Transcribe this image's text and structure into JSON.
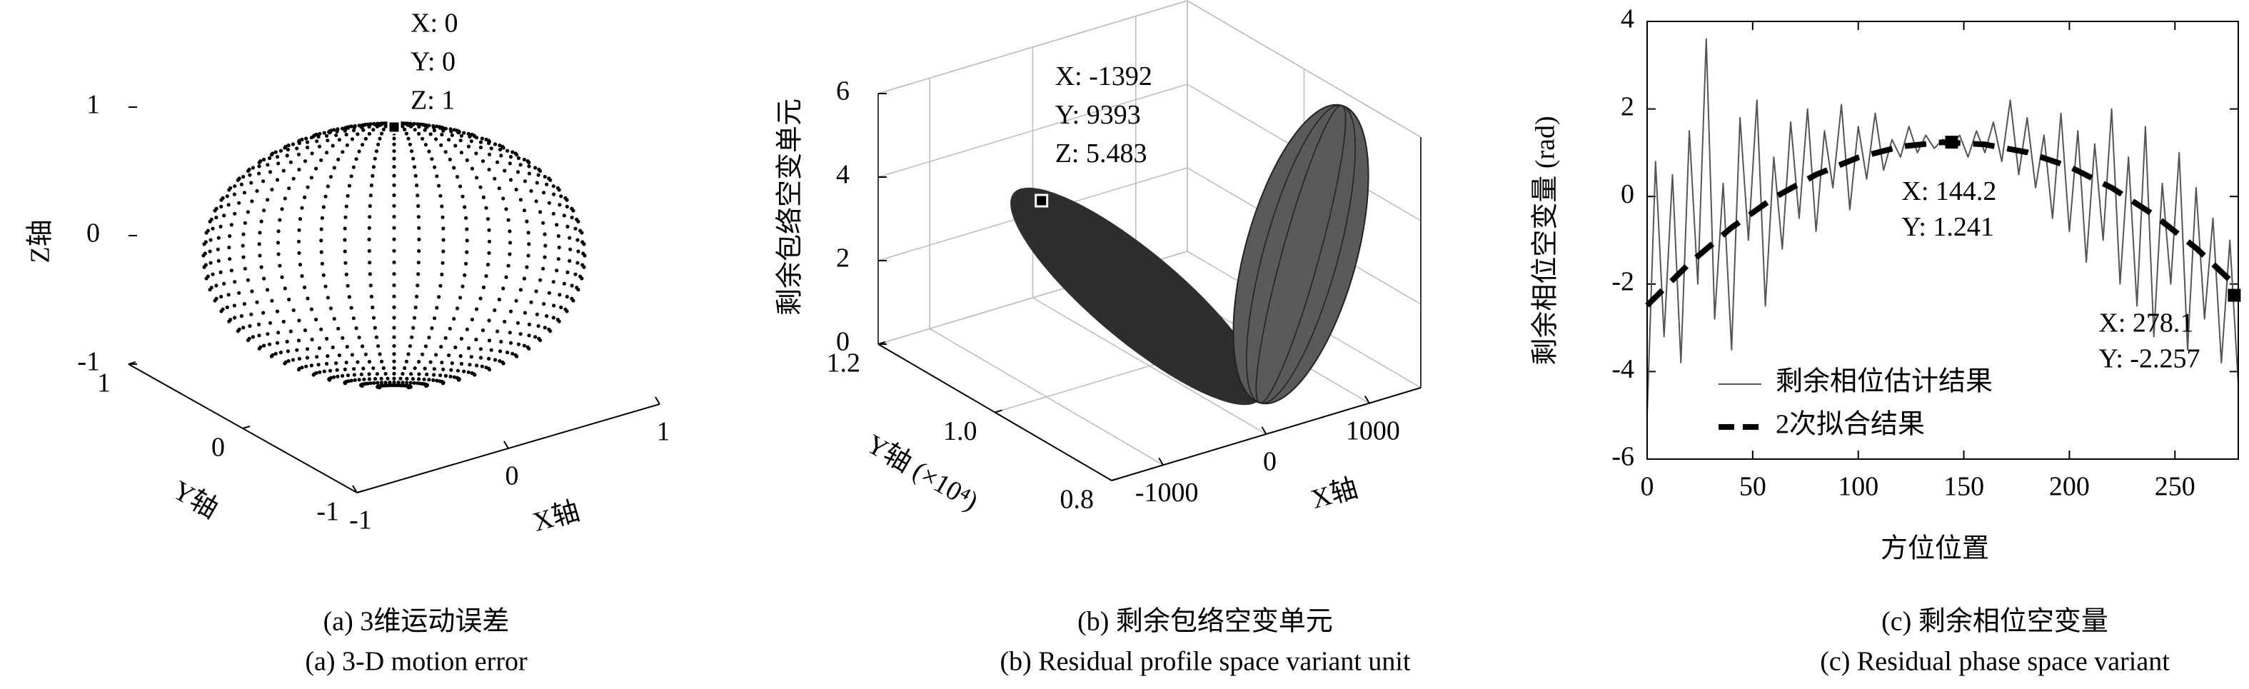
{
  "chart_data": [
    {
      "type": "scatter3d",
      "caption": "(a) 3维运动误差",
      "caption_en": "(a) 3-D motion error",
      "xlabel": "X轴",
      "ylabel": "Y轴",
      "zlabel": "Z轴",
      "xlim": [
        -1,
        1
      ],
      "ylim": [
        -1,
        1
      ],
      "zlim": [
        -1,
        1
      ],
      "xticks": [
        -1,
        0,
        1
      ],
      "yticks": [
        -1,
        0,
        1
      ],
      "zticks": [
        -1,
        0,
        1
      ],
      "grid": false,
      "color": "#000000",
      "datatips": [
        {
          "x": 0,
          "y": 0,
          "z": 1,
          "labels": [
            "X: 0",
            "Y: 0",
            "Z: 1"
          ]
        }
      ]
    },
    {
      "type": "surface3d",
      "caption": "(b) 剩余包络空变单元",
      "caption_en": "(b) Residual profile space variant unit",
      "xlabel": "X轴",
      "ylabel": "Y轴 (×10⁴)",
      "zlabel": "剩余包络空变单元",
      "xlim": [
        -1500,
        1500
      ],
      "ylim": [
        8000,
        12000
      ],
      "zlim": [
        0,
        6
      ],
      "xticks": [
        -1000,
        0,
        1000
      ],
      "yticks": [
        {
          "value": 8000,
          "label": "0.8"
        },
        {
          "value": 10000,
          "label": "1.0"
        },
        {
          "value": 12000,
          "label": "1.2"
        }
      ],
      "zticks": [
        0,
        2,
        4,
        6
      ],
      "grid": true,
      "color": "#333333",
      "datatips": [
        {
          "x": -1392,
          "y": 9393,
          "z": 5.483,
          "labels": [
            "X: -1392",
            "Y: 9393",
            "Z: 5.483"
          ]
        }
      ]
    },
    {
      "type": "line",
      "caption": "(c) 剩余相位空变量",
      "caption_en": "(c) Residual phase space variant",
      "xlabel": "方位位置",
      "ylabel": "剩余相位空变量 (rad)",
      "xlim": [
        0,
        280
      ],
      "ylim": [
        -6,
        4
      ],
      "xticks": [
        0,
        50,
        100,
        150,
        200,
        250
      ],
      "yticks": [
        -6,
        -4,
        -2,
        0,
        2,
        4
      ],
      "legend": "lower left",
      "series": [
        {
          "name": "剩余相位估计结果",
          "color": "#555555",
          "x": [
            0,
            4,
            8,
            12,
            16,
            20,
            24,
            28,
            32,
            36,
            40,
            44,
            48,
            52,
            56,
            60,
            64,
            68,
            72,
            76,
            80,
            84,
            88,
            92,
            96,
            100,
            104,
            108,
            112,
            116,
            120,
            124,
            128,
            132,
            136,
            140,
            144,
            148,
            152,
            156,
            160,
            164,
            168,
            172,
            176,
            180,
            184,
            188,
            192,
            196,
            200,
            204,
            208,
            212,
            216,
            220,
            224,
            228,
            232,
            236,
            240,
            244,
            248,
            252,
            256,
            260,
            264,
            268,
            272,
            276,
            280
          ],
          "values": [
            -5.0,
            0.8,
            -3.2,
            0.5,
            -3.8,
            1.5,
            -2.0,
            3.6,
            -2.8,
            0.3,
            -3.5,
            1.8,
            -1.0,
            2.2,
            -2.5,
            0.9,
            -1.2,
            1.7,
            -0.5,
            2.0,
            -0.8,
            1.5,
            0.2,
            2.1,
            -0.3,
            1.6,
            0.4,
            1.9,
            0.6,
            1.3,
            0.9,
            1.6,
            1.0,
            1.4,
            1.1,
            1.3,
            1.2,
            1.4,
            0.9,
            1.5,
            1.0,
            1.7,
            0.8,
            2.2,
            0.5,
            1.8,
            0.2,
            1.4,
            -0.5,
            1.9,
            -0.8,
            1.5,
            -1.5,
            1.2,
            -1.0,
            2.0,
            -2.0,
            0.9,
            -2.5,
            1.6,
            -3.2,
            0.3,
            -2.0,
            1.0,
            -3.5,
            0.2,
            -2.8,
            -0.5,
            -3.8,
            -1.0,
            -4.3
          ]
        },
        {
          "name": "2次拟合结果",
          "color": "#000000",
          "x": [
            0,
            20,
            40,
            60,
            80,
            100,
            120,
            140,
            160,
            180,
            200,
            220,
            240,
            260,
            280
          ],
          "values": [
            -2.49,
            -1.53,
            -0.71,
            -0.03,
            0.5,
            0.89,
            1.14,
            1.24,
            1.19,
            1.01,
            0.68,
            0.2,
            -0.42,
            -1.18,
            -2.09
          ]
        }
      ],
      "datatips": [
        {
          "x": 144.2,
          "y": 1.241,
          "labels": [
            "X: 144.2",
            "Y: 1.241"
          ]
        },
        {
          "x": 278.1,
          "y": -2.257,
          "labels": [
            "X: 278.1",
            "Y: -2.257"
          ]
        }
      ]
    }
  ]
}
